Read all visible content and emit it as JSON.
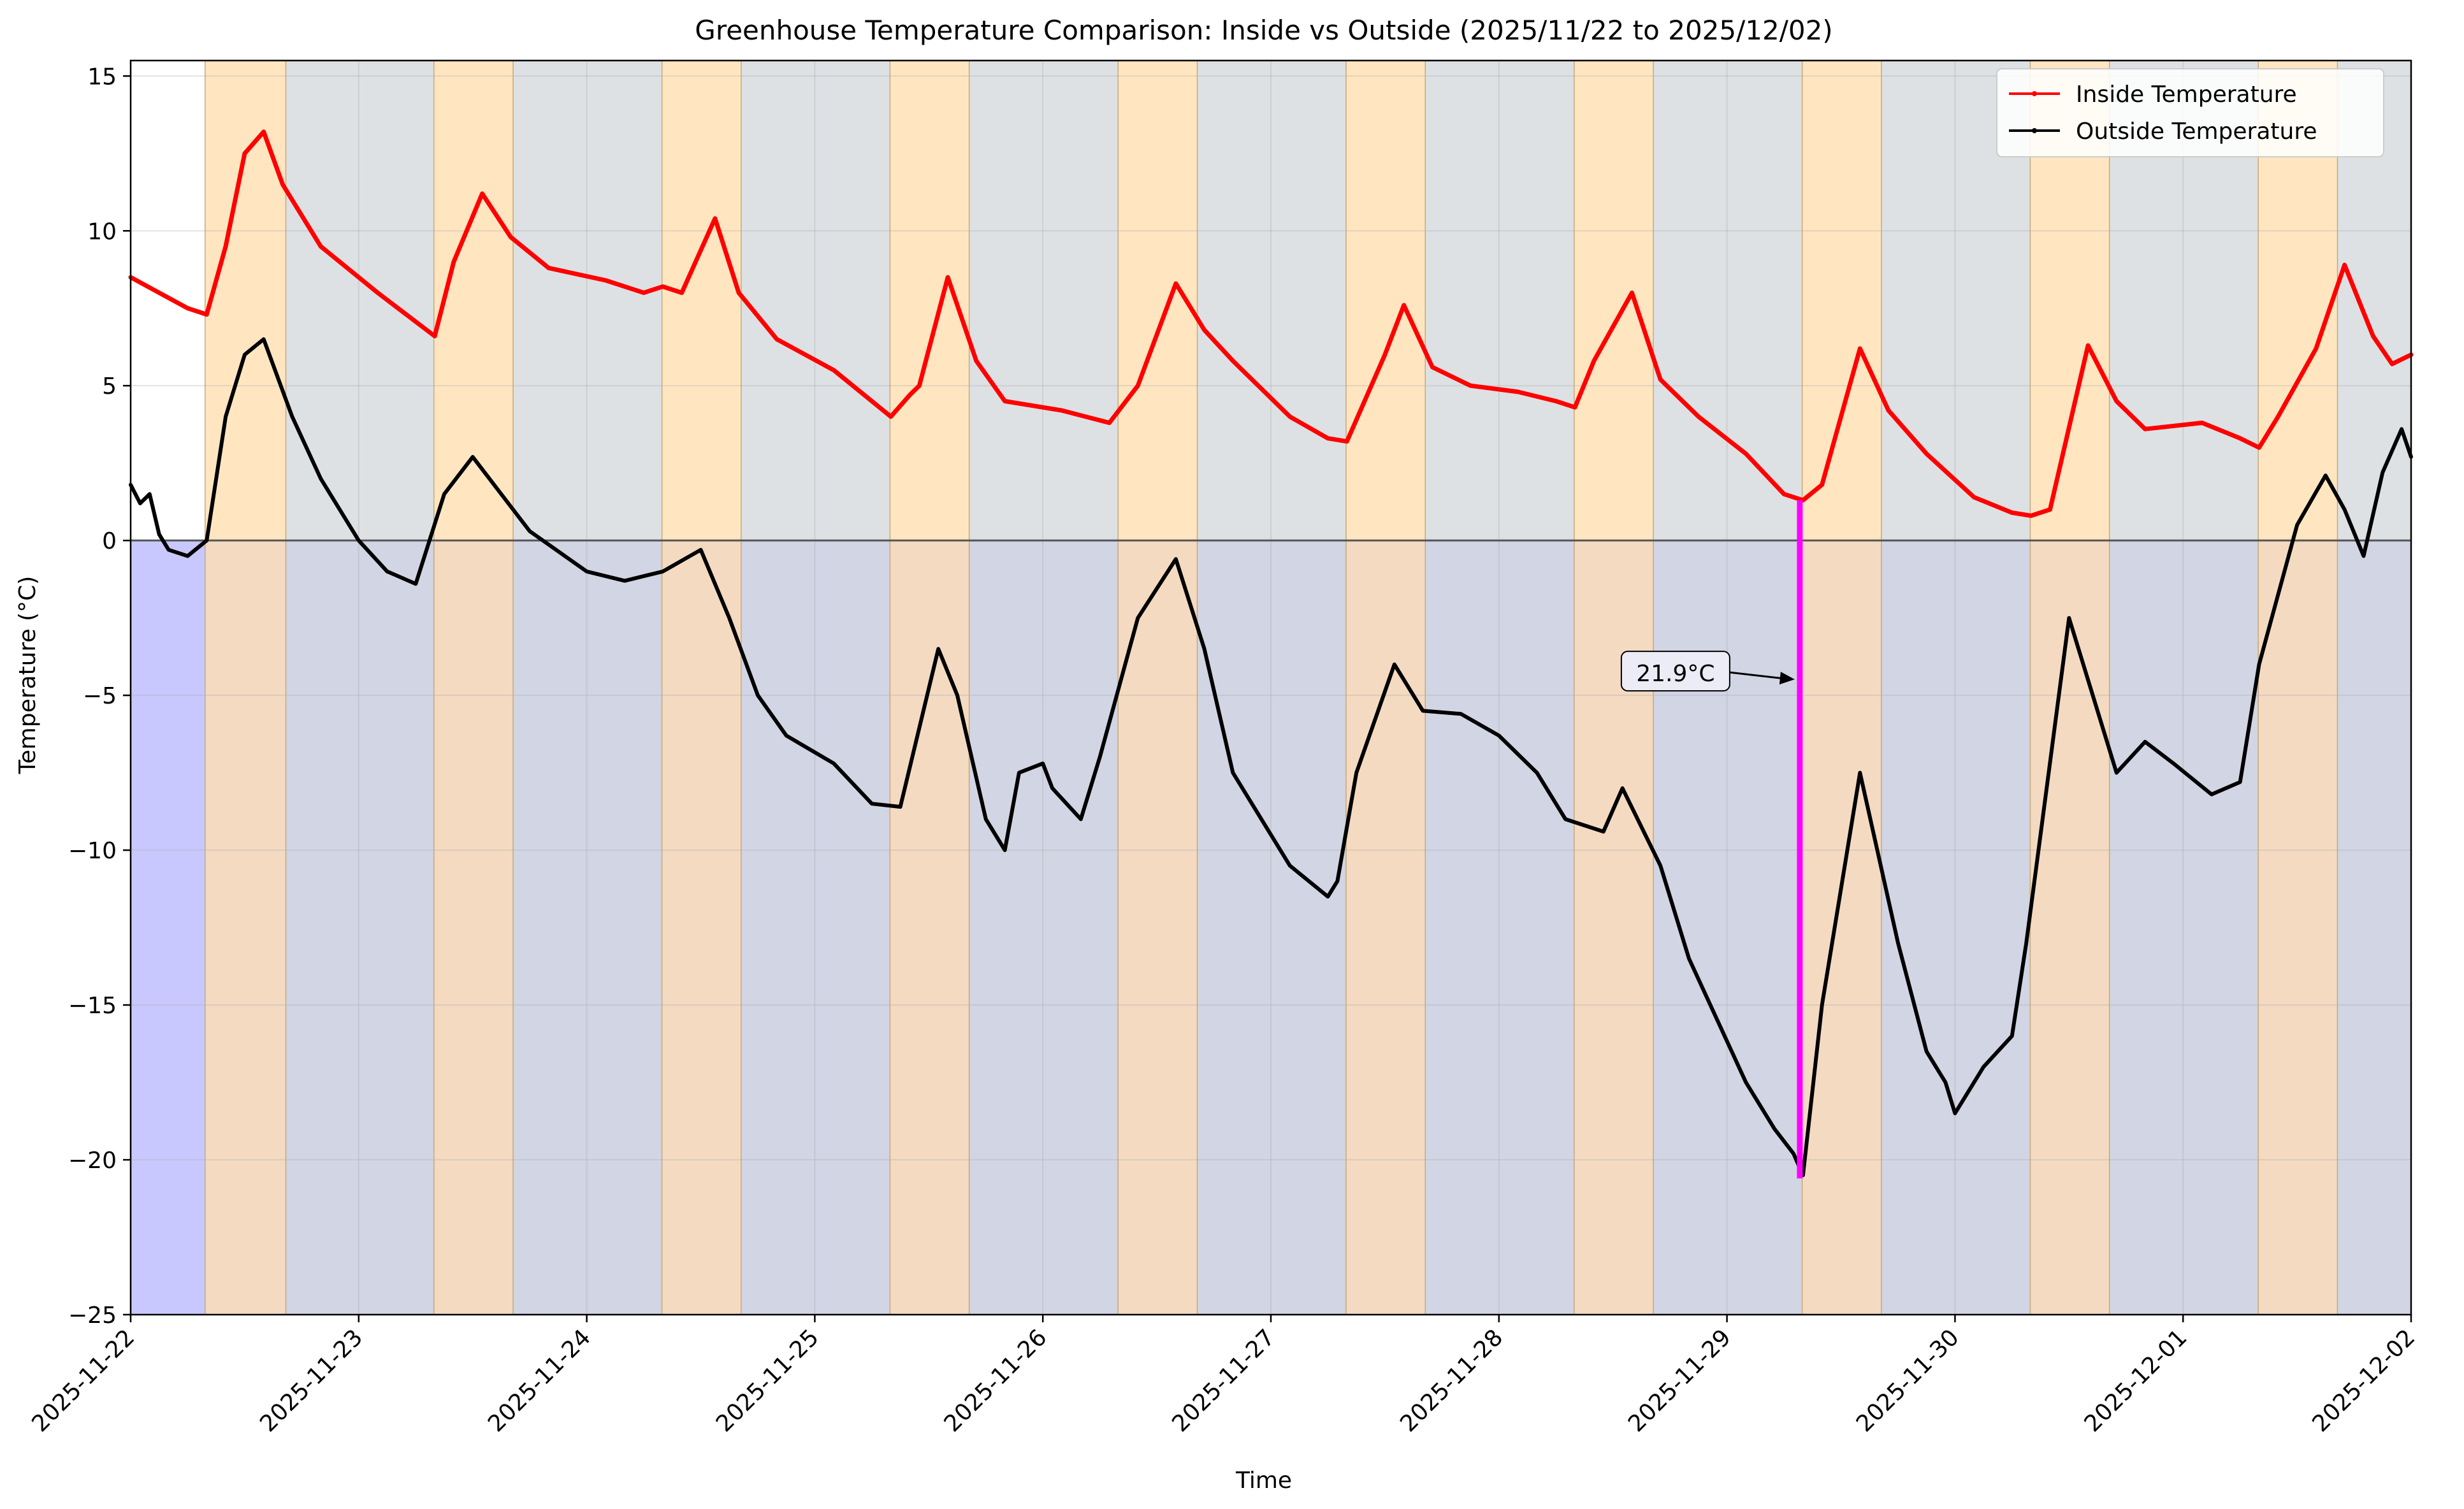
{
  "chart_data": {
    "type": "line",
    "title": "Greenhouse Temperature Comparison: Inside vs Outside (2025/11/22 to 2025/12/02)",
    "xlabel": "Time",
    "ylabel": "Temperature (°C)",
    "x_ticks": [
      "2025-11-22",
      "2025-11-23",
      "2025-11-24",
      "2025-11-25",
      "2025-11-26",
      "2025-11-27",
      "2025-11-28",
      "2025-11-29",
      "2025-11-30",
      "2025-12-01",
      "2025-12-02"
    ],
    "y_ticks": [
      15,
      10,
      5,
      0,
      -5,
      -10,
      -15,
      -20,
      -25
    ],
    "y_tick_labels": [
      "15",
      "10",
      "5",
      "0",
      "−5",
      "−10",
      "−15",
      "−20",
      "−25"
    ],
    "xlim": [
      "2025-11-22 00:00",
      "2025-12-02 00:00"
    ],
    "ylim": [
      -25,
      15.5
    ],
    "grid": true,
    "legend_position": "top-right",
    "zero_line": true,
    "background_regions": {
      "below_zero_color": "#c8c8ff",
      "above_zero_color": "#ffffff",
      "daylight_color": "#ffdfb0",
      "night_color": "#d3d8dd",
      "daylight_windows": [
        [
          "2025-11-22 07:50",
          "2025-11-22 16:20"
        ],
        [
          "2025-11-23 07:55",
          "2025-11-23 16:15"
        ],
        [
          "2025-11-24 07:55",
          "2025-11-24 16:15"
        ],
        [
          "2025-11-25 07:55",
          "2025-11-25 16:15"
        ],
        [
          "2025-11-26 07:55",
          "2025-11-26 16:15"
        ],
        [
          "2025-11-27 07:55",
          "2025-11-27 16:15"
        ],
        [
          "2025-11-28 07:55",
          "2025-11-28 16:15"
        ],
        [
          "2025-11-29 07:55",
          "2025-11-29 16:15"
        ],
        [
          "2025-11-30 07:55",
          "2025-11-30 16:15"
        ],
        [
          "2025-12-01 07:55",
          "2025-12-01 16:15"
        ]
      ]
    },
    "series": [
      {
        "name": "Inside Temperature",
        "color": "#ff0000",
        "x": [
          "2025-11-22 00:00",
          "2025-11-22 03:00",
          "2025-11-22 06:00",
          "2025-11-22 08:00",
          "2025-11-22 10:00",
          "2025-11-22 12:00",
          "2025-11-22 14:00",
          "2025-11-22 16:00",
          "2025-11-22 20:00",
          "2025-11-23 02:00",
          "2025-11-23 08:00",
          "2025-11-23 10:00",
          "2025-11-23 13:00",
          "2025-11-23 16:00",
          "2025-11-23 20:00",
          "2025-11-24 02:00",
          "2025-11-24 06:00",
          "2025-11-24 08:00",
          "2025-11-24 10:00",
          "2025-11-24 13:30",
          "2025-11-24 16:00",
          "2025-11-24 20:00",
          "2025-11-25 02:00",
          "2025-11-25 06:00",
          "2025-11-25 08:00",
          "2025-11-25 10:00",
          "2025-11-25 11:00",
          "2025-11-25 14:00",
          "2025-11-25 17:00",
          "2025-11-25 20:00",
          "2025-11-26 02:00",
          "2025-11-26 07:00",
          "2025-11-26 10:00",
          "2025-11-26 14:00",
          "2025-11-26 17:00",
          "2025-11-26 20:00",
          "2025-11-27 02:00",
          "2025-11-27 06:00",
          "2025-11-27 08:00",
          "2025-11-27 12:00",
          "2025-11-27 14:00",
          "2025-11-27 17:00",
          "2025-11-27 21:00",
          "2025-11-28 02:00",
          "2025-11-28 06:00",
          "2025-11-28 08:00",
          "2025-11-28 10:00",
          "2025-11-28 14:00",
          "2025-11-28 17:00",
          "2025-11-28 21:00",
          "2025-11-29 02:00",
          "2025-11-29 06:00",
          "2025-11-29 08:00",
          "2025-11-29 10:00",
          "2025-11-29 14:00",
          "2025-11-29 17:00",
          "2025-11-29 21:00",
          "2025-11-30 02:00",
          "2025-11-30 06:00",
          "2025-11-30 08:00",
          "2025-11-30 10:00",
          "2025-11-30 14:00",
          "2025-11-30 17:00",
          "2025-11-30 20:00",
          "2025-12-01 02:00",
          "2025-12-01 06:00",
          "2025-12-01 08:00",
          "2025-12-01 10:00",
          "2025-12-01 14:00",
          "2025-12-01 17:00",
          "2025-12-01 20:00",
          "2025-12-01 22:00",
          "2025-12-02 00:00"
        ],
        "y": [
          8.5,
          8.0,
          7.5,
          7.3,
          9.5,
          12.5,
          13.2,
          11.5,
          9.5,
          8.0,
          6.6,
          9.0,
          11.2,
          9.8,
          8.8,
          8.4,
          8.0,
          8.2,
          8.0,
          10.4,
          8.0,
          6.5,
          5.5,
          4.5,
          4.0,
          4.7,
          5.0,
          8.5,
          5.8,
          4.5,
          4.2,
          3.8,
          5.0,
          8.3,
          6.8,
          5.8,
          4.0,
          3.3,
          3.2,
          6.0,
          7.6,
          5.6,
          5.0,
          4.8,
          4.5,
          4.3,
          5.8,
          8.0,
          5.2,
          4.0,
          2.8,
          1.5,
          1.3,
          1.8,
          6.2,
          4.2,
          2.8,
          1.4,
          0.9,
          0.8,
          1.0,
          6.3,
          4.5,
          3.6,
          3.8,
          3.3,
          3.0,
          4.0,
          6.2,
          8.9,
          6.6,
          5.7,
          6.0
        ]
      },
      {
        "name": "Outside Temperature",
        "color": "#000000",
        "x": [
          "2025-11-22 00:00",
          "2025-11-22 01:00",
          "2025-11-22 02:00",
          "2025-11-22 03:00",
          "2025-11-22 04:00",
          "2025-11-22 06:00",
          "2025-11-22 08:00",
          "2025-11-22 10:00",
          "2025-11-22 12:00",
          "2025-11-22 14:00",
          "2025-11-22 17:00",
          "2025-11-22 20:00",
          "2025-11-23 00:00",
          "2025-11-23 03:00",
          "2025-11-23 06:00",
          "2025-11-23 09:00",
          "2025-11-23 12:00",
          "2025-11-23 15:00",
          "2025-11-23 18:00",
          "2025-11-24 00:00",
          "2025-11-24 04:00",
          "2025-11-24 08:00",
          "2025-11-24 12:00",
          "2025-11-24 15:00",
          "2025-11-24 18:00",
          "2025-11-24 21:00",
          "2025-11-25 02:00",
          "2025-11-25 06:00",
          "2025-11-25 09:00",
          "2025-11-25 13:00",
          "2025-11-25 15:00",
          "2025-11-25 18:00",
          "2025-11-25 20:00",
          "2025-11-25 21:30",
          "2025-11-26 00:00",
          "2025-11-26 01:00",
          "2025-11-26 04:00",
          "2025-11-26 06:00",
          "2025-11-26 10:00",
          "2025-11-26 14:00",
          "2025-11-26 17:00",
          "2025-11-26 20:00",
          "2025-11-27 02:00",
          "2025-11-27 06:00",
          "2025-11-27 07:00",
          "2025-11-27 09:00",
          "2025-11-27 13:00",
          "2025-11-27 16:00",
          "2025-11-27 20:00",
          "2025-11-28 00:00",
          "2025-11-28 04:00",
          "2025-11-28 07:00",
          "2025-11-28 11:00",
          "2025-11-28 13:00",
          "2025-11-28 17:00",
          "2025-11-28 20:00",
          "2025-11-28 23:00",
          "2025-11-29 02:00",
          "2025-11-29 05:00",
          "2025-11-29 07:00",
          "2025-11-29 08:00",
          "2025-11-29 10:00",
          "2025-11-29 14:00",
          "2025-11-29 18:00",
          "2025-11-29 21:00",
          "2025-11-29 23:00",
          "2025-11-30 00:00",
          "2025-11-30 03:00",
          "2025-11-30 06:00",
          "2025-11-30 07:30",
          "2025-11-30 09:00",
          "2025-11-30 12:00",
          "2025-11-30 14:00",
          "2025-11-30 17:00",
          "2025-11-30 20:00",
          "2025-11-30 23:00",
          "2025-12-01 03:00",
          "2025-12-01 06:00",
          "2025-12-01 08:00",
          "2025-12-01 12:00",
          "2025-12-01 15:00",
          "2025-12-01 17:00",
          "2025-12-01 19:00",
          "2025-12-01 21:00",
          "2025-12-01 23:00",
          "2025-12-02 00:00"
        ],
        "y": [
          1.8,
          1.2,
          1.5,
          0.2,
          -0.3,
          -0.5,
          0.0,
          4.0,
          6.0,
          6.5,
          4.0,
          2.0,
          0.0,
          -1.0,
          -1.4,
          1.5,
          2.7,
          1.5,
          0.3,
          -1.0,
          -1.3,
          -1.0,
          -0.3,
          -2.5,
          -5.0,
          -6.3,
          -7.2,
          -8.5,
          -8.6,
          -3.5,
          -5.0,
          -9.0,
          -10.0,
          -7.5,
          -7.2,
          -8.0,
          -9.0,
          -7.0,
          -2.5,
          -0.6,
          -3.5,
          -7.5,
          -10.5,
          -11.5,
          -11.0,
          -7.5,
          -4.0,
          -5.5,
          -5.6,
          -6.3,
          -7.5,
          -9.0,
          -9.4,
          -8.0,
          -10.5,
          -13.5,
          -15.5,
          -17.5,
          -19.0,
          -19.8,
          -20.5,
          -15.0,
          -7.5,
          -13.0,
          -16.5,
          -17.5,
          -18.5,
          -17.0,
          -16.0,
          -13.0,
          -9.5,
          -2.5,
          -4.5,
          -7.5,
          -6.5,
          -7.2,
          -8.2,
          -7.8,
          -4.0,
          0.5,
          2.1,
          1.0,
          -0.5,
          2.2,
          3.6,
          2.7
        ]
      }
    ],
    "annotation": {
      "text": "21.9°C",
      "color": "#ff00ff",
      "x": "2025-11-29 07:40",
      "y_top": 1.3,
      "y_bottom": -20.6,
      "arrow_target_y": -4.3
    }
  }
}
